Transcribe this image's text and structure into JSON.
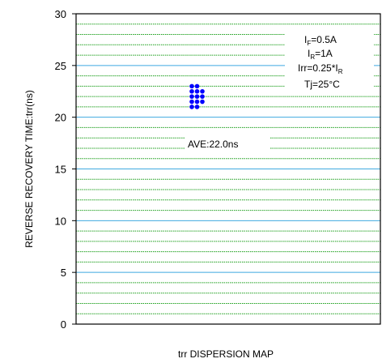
{
  "chart_data": {
    "type": "scatter",
    "title": "",
    "xlabel": "trr DISPERSION MAP",
    "ylabel": "REVERSE RECOVERY TIME:trr(ns)",
    "ylim": [
      0,
      30
    ],
    "yticks": [
      0,
      5,
      10,
      15,
      20,
      25,
      30
    ],
    "grid": true,
    "points": [
      {
        "column": 0,
        "value": 23
      },
      {
        "column": 1,
        "value": 23
      },
      {
        "column": 0,
        "value": 22.5
      },
      {
        "column": 1,
        "value": 22.5
      },
      {
        "column": 2,
        "value": 22.5
      },
      {
        "column": 0,
        "value": 22
      },
      {
        "column": 1,
        "value": 22
      },
      {
        "column": 2,
        "value": 22
      },
      {
        "column": 0,
        "value": 21.5
      },
      {
        "column": 1,
        "value": 21.5
      },
      {
        "column": 2,
        "value": 21.5
      },
      {
        "column": 0,
        "value": 21
      },
      {
        "column": 1,
        "value": 21
      }
    ],
    "average_label": "AVE:22.0ns",
    "conditions": {
      "if_label": "I",
      "if_sub": "F",
      "if_value": "=0.5A",
      "ir_label": "I",
      "ir_sub": "R",
      "ir_value": "=1A",
      "irr_label": "Irr=0.25*I",
      "irr_sub": "R",
      "tj": "Tj=25°C"
    },
    "colors": {
      "major_grid": "#3fa9e0",
      "minor_grid": "#1fa01f",
      "marker": "#0000ff"
    }
  }
}
